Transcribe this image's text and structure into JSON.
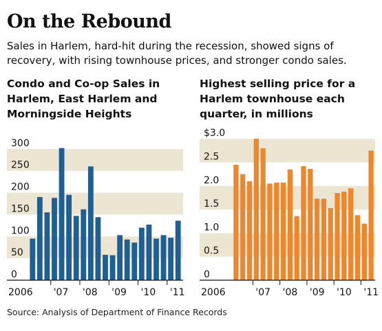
{
  "header": {
    "title": "On the Rebound",
    "subtitle": "Sales in Harlem, hard-hit during the recession, showed signs of recovery, with rising townhouse prices, and stronger condo sales."
  },
  "source": "Source: Analysis of Department of Finance Records",
  "colors": {
    "left_bars": "#1e5f94",
    "right_bars": "#f0862a",
    "band": "#ece5d2"
  },
  "chart_data": [
    {
      "type": "bar",
      "title": "Condo and Co-op Sales in Harlem, East Harlem and Morningside Heights",
      "ylim": [
        0,
        350
      ],
      "ytick_labels": [
        "0",
        "50",
        "100",
        "150",
        "200",
        "250",
        "300"
      ],
      "ytick_values": [
        0,
        50,
        100,
        150,
        200,
        250,
        300
      ],
      "xtick_labels": [
        "2006",
        "'07",
        "'08",
        "'09",
        "'10",
        "'11"
      ],
      "values": [
        95,
        190,
        155,
        188,
        302,
        195,
        147,
        162,
        260,
        144,
        58,
        57,
        103,
        93,
        86,
        120,
        127,
        95,
        103,
        97,
        136
      ]
    },
    {
      "type": "bar",
      "title": "Highest selling price for a Harlem townhouse each quarter, in millions",
      "ylim": [
        0,
        3.25
      ],
      "ytick_labels": [
        "0",
        "0.5",
        "1.0",
        "1.5",
        "2.0",
        "2.5",
        "$3.0"
      ],
      "ytick_values": [
        0,
        0.5,
        1.0,
        1.5,
        2.0,
        2.5,
        3.0
      ],
      "xtick_labels": [
        "2006",
        "'07",
        "'08",
        "'09",
        "'10",
        "'11"
      ],
      "values": [
        2.45,
        2.25,
        2.1,
        3.0,
        2.8,
        2.05,
        2.07,
        2.07,
        2.35,
        1.36,
        2.42,
        2.36,
        1.73,
        1.73,
        1.53,
        1.85,
        1.88,
        1.95,
        1.38,
        1.2,
        2.75
      ]
    }
  ]
}
